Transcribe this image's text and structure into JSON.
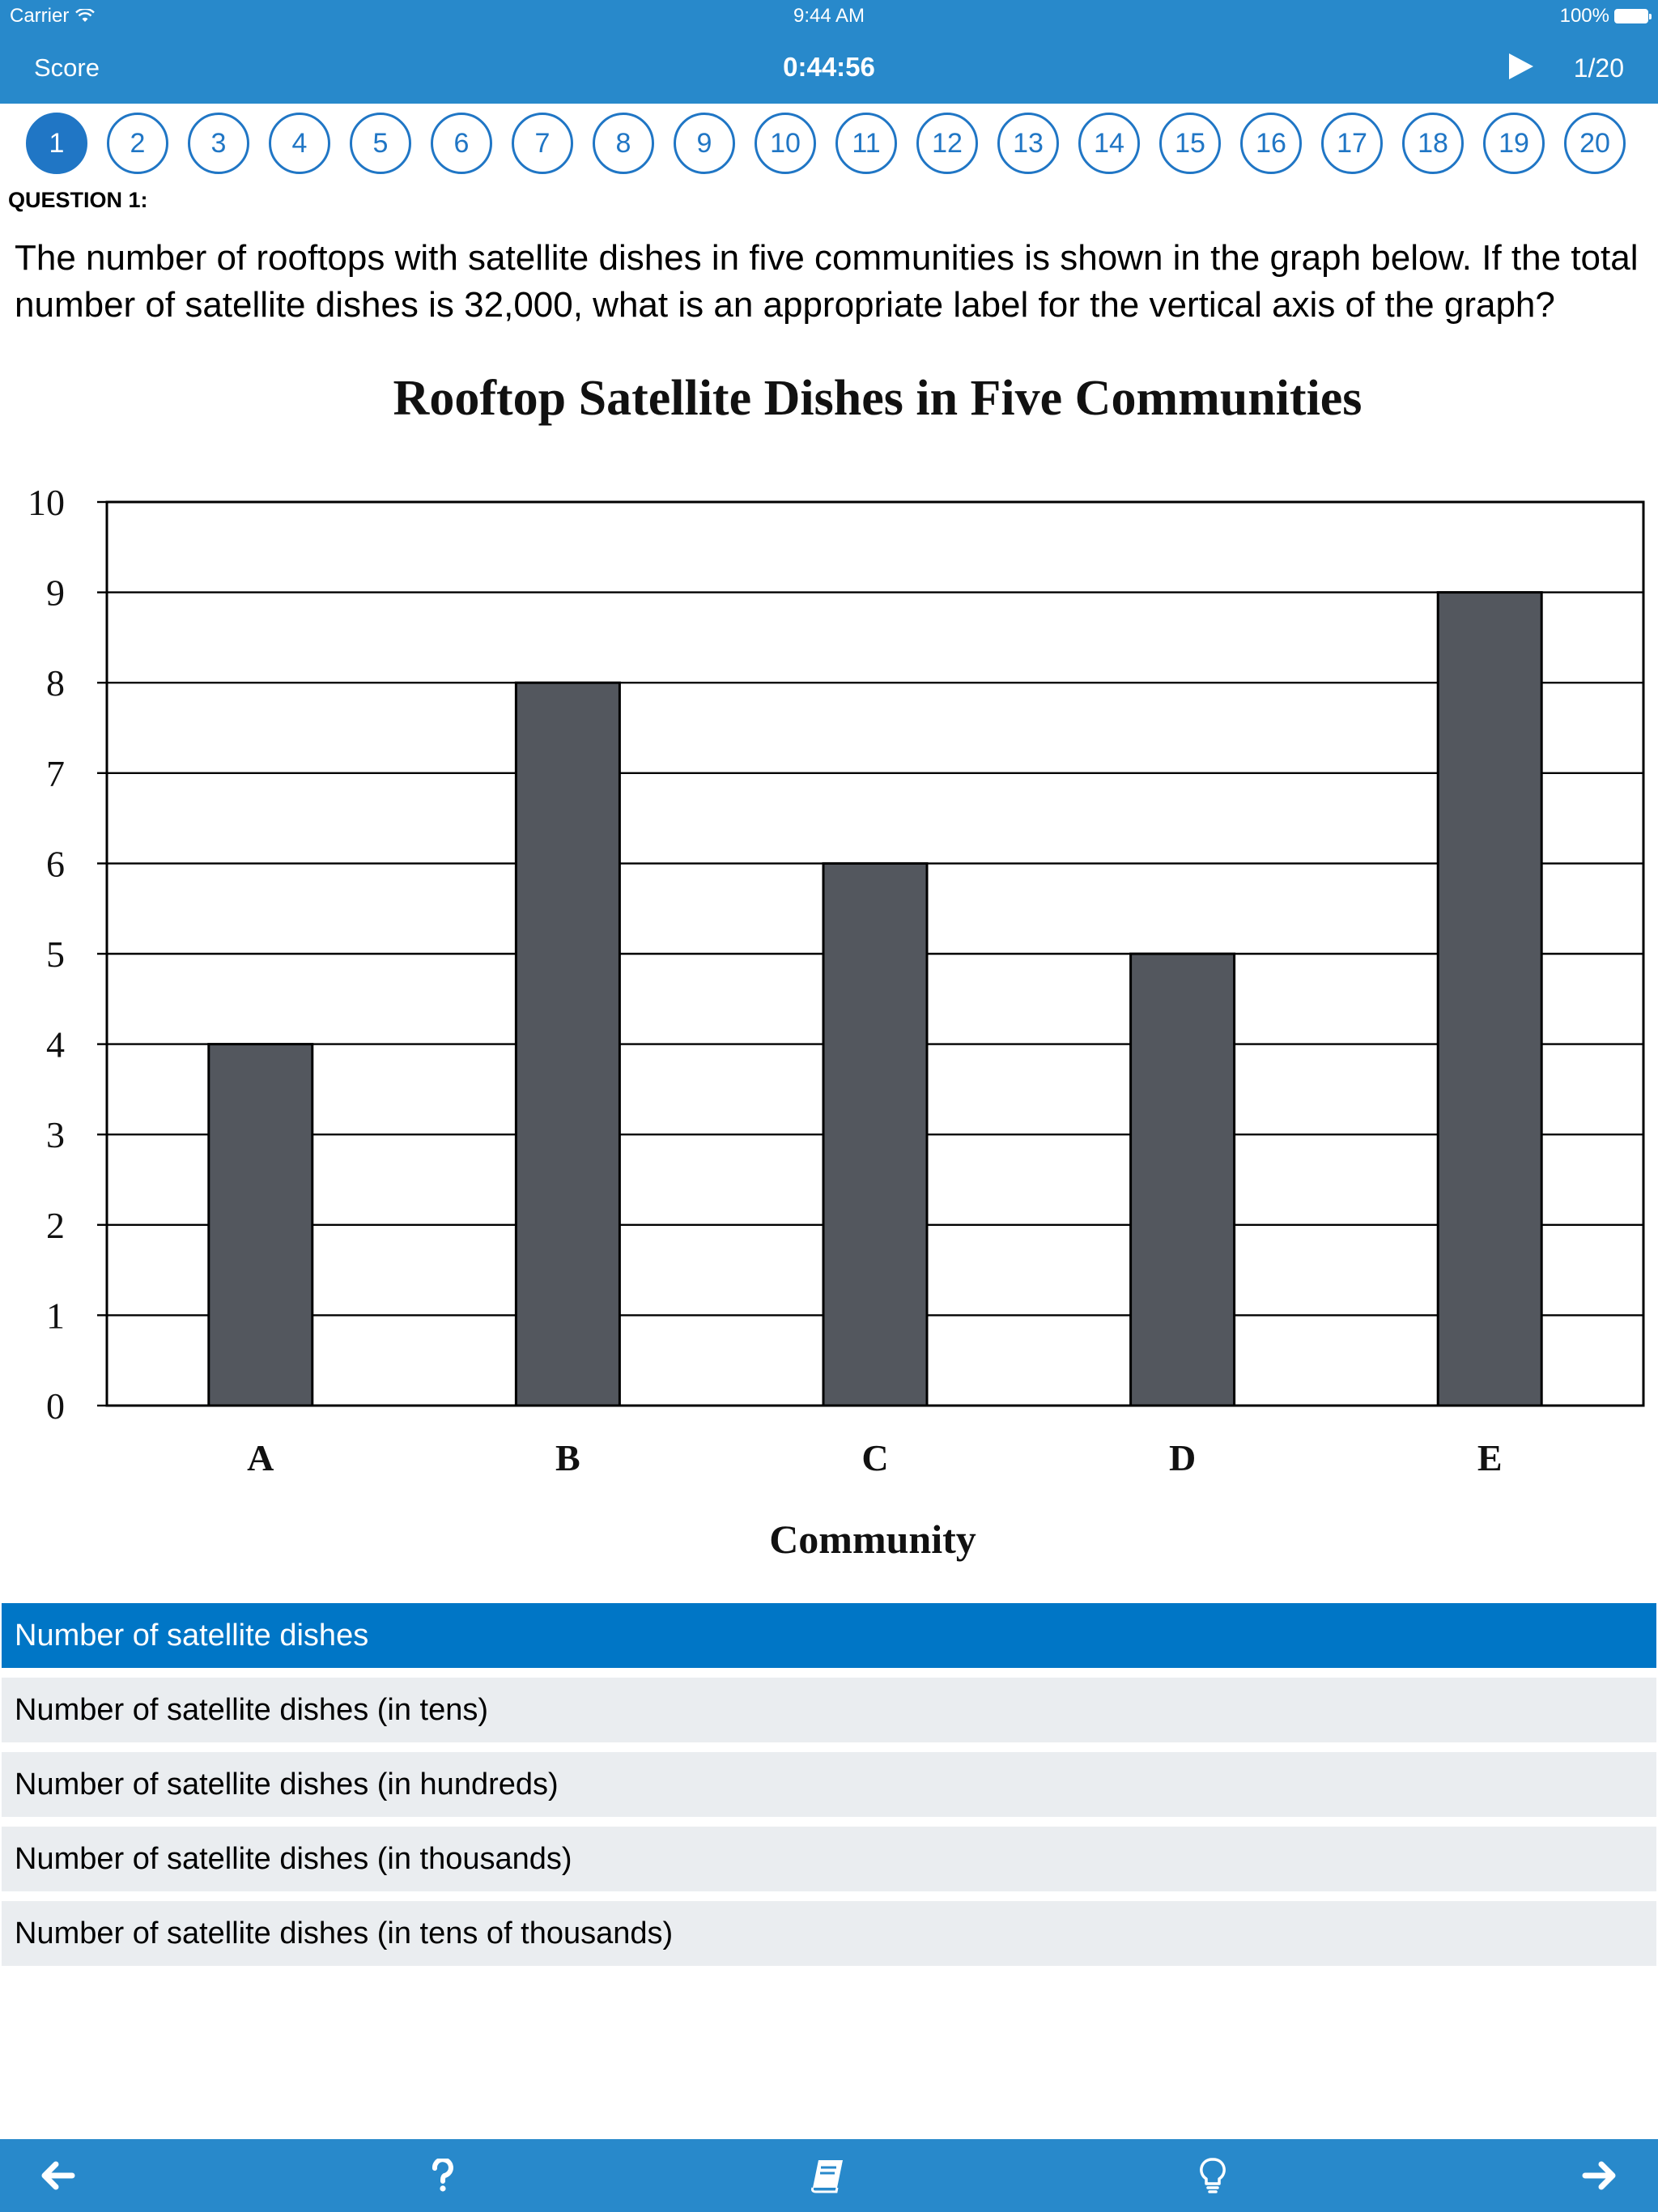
{
  "status_bar": {
    "carrier": "Carrier",
    "time": "9:44 AM",
    "battery": "100%"
  },
  "nav": {
    "score_label": "Score",
    "timer": "0:44:56",
    "progress": "1/20"
  },
  "question_numbers": [
    "1",
    "2",
    "3",
    "4",
    "5",
    "6",
    "7",
    "8",
    "9",
    "10",
    "11",
    "12",
    "13",
    "14",
    "15",
    "16",
    "17",
    "18",
    "19",
    "20"
  ],
  "question": {
    "label": "QUESTION 1:",
    "text": "The number of rooftops with satellite dishes in five communities is shown in the graph below. If the total number of satellite dishes is 32,000, what is an appropriate label for the vertical axis of the graph?"
  },
  "chart_data": {
    "type": "bar",
    "title": "Rooftop Satellite Dishes in Five Communities",
    "categories": [
      "A",
      "B",
      "C",
      "D",
      "E"
    ],
    "values": [
      4,
      8,
      6,
      5,
      9
    ],
    "xlabel": "Community",
    "ylabel": "",
    "ylim": [
      0,
      10
    ],
    "yticks": [
      "0",
      "1",
      "2",
      "3",
      "4",
      "5",
      "6",
      "7",
      "8",
      "9",
      "10"
    ],
    "grid": true,
    "bar_color": "#53575e"
  },
  "answers": [
    "Number of satellite dishes",
    "Number of satellite dishes (in tens)",
    "Number of satellite dishes (in hundreds)",
    "Number of satellite dishes (in thousands)",
    "Number of satellite dishes (in tens of thousands)"
  ],
  "selected_answer": 0,
  "colors": {
    "accent": "#2889cb",
    "selected": "#0076c6",
    "answer_bg": "#eaedf0"
  },
  "icons": {
    "back": "arrow-left-icon",
    "help": "question-icon",
    "reference": "book-icon",
    "hint": "lightbulb-icon",
    "next": "arrow-right-icon"
  }
}
